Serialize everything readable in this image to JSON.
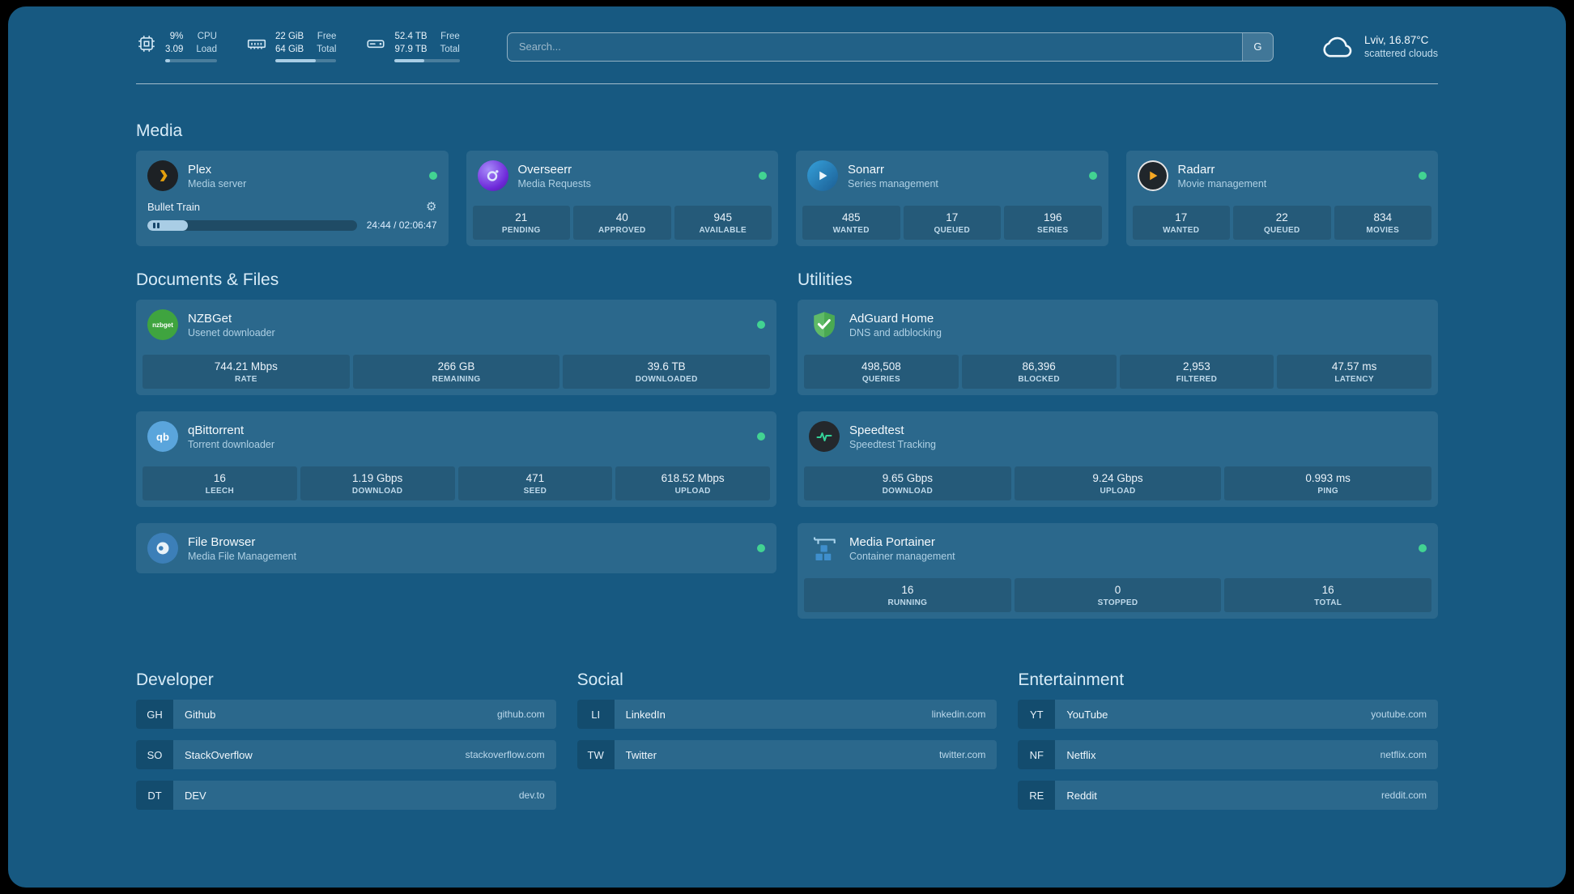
{
  "colors": {
    "background": "#175981",
    "status_green": "#42d392",
    "plex_amber": "#e5a00d",
    "adguard_green": "#5fba67",
    "speedtest_green": "#34d399"
  },
  "topbar": {
    "cpu": {
      "value_top": "9%",
      "value_bottom": "3.09",
      "label_top": "CPU",
      "label_bottom": "Load",
      "used_percent": 9
    },
    "memory": {
      "value_top": "22 GiB",
      "value_bottom": "64 GiB",
      "label_top": "Free",
      "label_bottom": "Total",
      "used_percent": 66
    },
    "disk": {
      "value_top": "52.4 TB",
      "value_bottom": "97.9 TB",
      "label_top": "Free",
      "label_bottom": "Total",
      "used_percent": 46
    },
    "search": {
      "placeholder": "Search...",
      "button_label": "G"
    },
    "weather": {
      "location": "Lviv, 16.87°C",
      "condition": "scattered clouds"
    }
  },
  "media": {
    "title": "Media",
    "plex": {
      "name": "Plex",
      "subtitle": "Media server",
      "now_playing": "Bullet Train",
      "gear_icon": "⚙",
      "progress_percent": 19.5,
      "time": "24:44 / 02:06:47"
    },
    "overseerr": {
      "name": "Overseerr",
      "subtitle": "Media Requests",
      "stats": [
        {
          "value": "21",
          "label": "PENDING"
        },
        {
          "value": "40",
          "label": "APPROVED"
        },
        {
          "value": "945",
          "label": "AVAILABLE"
        }
      ]
    },
    "sonarr": {
      "name": "Sonarr",
      "subtitle": "Series management",
      "stats": [
        {
          "value": "485",
          "label": "WANTED"
        },
        {
          "value": "17",
          "label": "QUEUED"
        },
        {
          "value": "196",
          "label": "SERIES"
        }
      ]
    },
    "radarr": {
      "name": "Radarr",
      "subtitle": "Movie management",
      "stats": [
        {
          "value": "17",
          "label": "WANTED"
        },
        {
          "value": "22",
          "label": "QUEUED"
        },
        {
          "value": "834",
          "label": "MOVIES"
        }
      ]
    }
  },
  "documents": {
    "title": "Documents & Files",
    "nzbget": {
      "name": "NZBGet",
      "subtitle": "Usenet downloader",
      "icon_text": "nzbget",
      "stats": [
        {
          "value": "744.21 Mbps",
          "label": "RATE"
        },
        {
          "value": "266 GB",
          "label": "REMAINING"
        },
        {
          "value": "39.6 TB",
          "label": "DOWNLOADED"
        }
      ]
    },
    "qbittorrent": {
      "name": "qBittorrent",
      "subtitle": "Torrent downloader",
      "icon_text": "qb",
      "stats": [
        {
          "value": "16",
          "label": "LEECH"
        },
        {
          "value": "1.19 Gbps",
          "label": "DOWNLOAD"
        },
        {
          "value": "471",
          "label": "SEED"
        },
        {
          "value": "618.52 Mbps",
          "label": "UPLOAD"
        }
      ]
    },
    "filebrowser": {
      "name": "File Browser",
      "subtitle": "Media File Management"
    }
  },
  "utilities": {
    "title": "Utilities",
    "adguard": {
      "name": "AdGuard Home",
      "subtitle": "DNS and adblocking",
      "stats": [
        {
          "value": "498,508",
          "label": "QUERIES"
        },
        {
          "value": "86,396",
          "label": "BLOCKED"
        },
        {
          "value": "2,953",
          "label": "FILTERED"
        },
        {
          "value": "47.57 ms",
          "label": "LATENCY"
        }
      ]
    },
    "speedtest": {
      "name": "Speedtest",
      "subtitle": "Speedtest Tracking",
      "stats": [
        {
          "value": "9.65 Gbps",
          "label": "DOWNLOAD"
        },
        {
          "value": "9.24 Gbps",
          "label": "UPLOAD"
        },
        {
          "value": "0.993 ms",
          "label": "PING"
        }
      ]
    },
    "portainer": {
      "name": "Media Portainer",
      "subtitle": "Container management",
      "stats": [
        {
          "value": "16",
          "label": "RUNNING"
        },
        {
          "value": "0",
          "label": "STOPPED"
        },
        {
          "value": "16",
          "label": "TOTAL"
        }
      ]
    }
  },
  "bookmarks": {
    "developer": {
      "title": "Developer",
      "items": [
        {
          "abbr": "GH",
          "name": "Github",
          "url": "github.com"
        },
        {
          "abbr": "SO",
          "name": "StackOverflow",
          "url": "stackoverflow.com"
        },
        {
          "abbr": "DT",
          "name": "DEV",
          "url": "dev.to"
        }
      ]
    },
    "social": {
      "title": "Social",
      "items": [
        {
          "abbr": "LI",
          "name": "LinkedIn",
          "url": "linkedin.com"
        },
        {
          "abbr": "TW",
          "name": "Twitter",
          "url": "twitter.com"
        }
      ]
    },
    "entertainment": {
      "title": "Entertainment",
      "items": [
        {
          "abbr": "YT",
          "name": "YouTube",
          "url": "youtube.com"
        },
        {
          "abbr": "NF",
          "name": "Netflix",
          "url": "netflix.com"
        },
        {
          "abbr": "RE",
          "name": "Reddit",
          "url": "reddit.com"
        }
      ]
    }
  }
}
